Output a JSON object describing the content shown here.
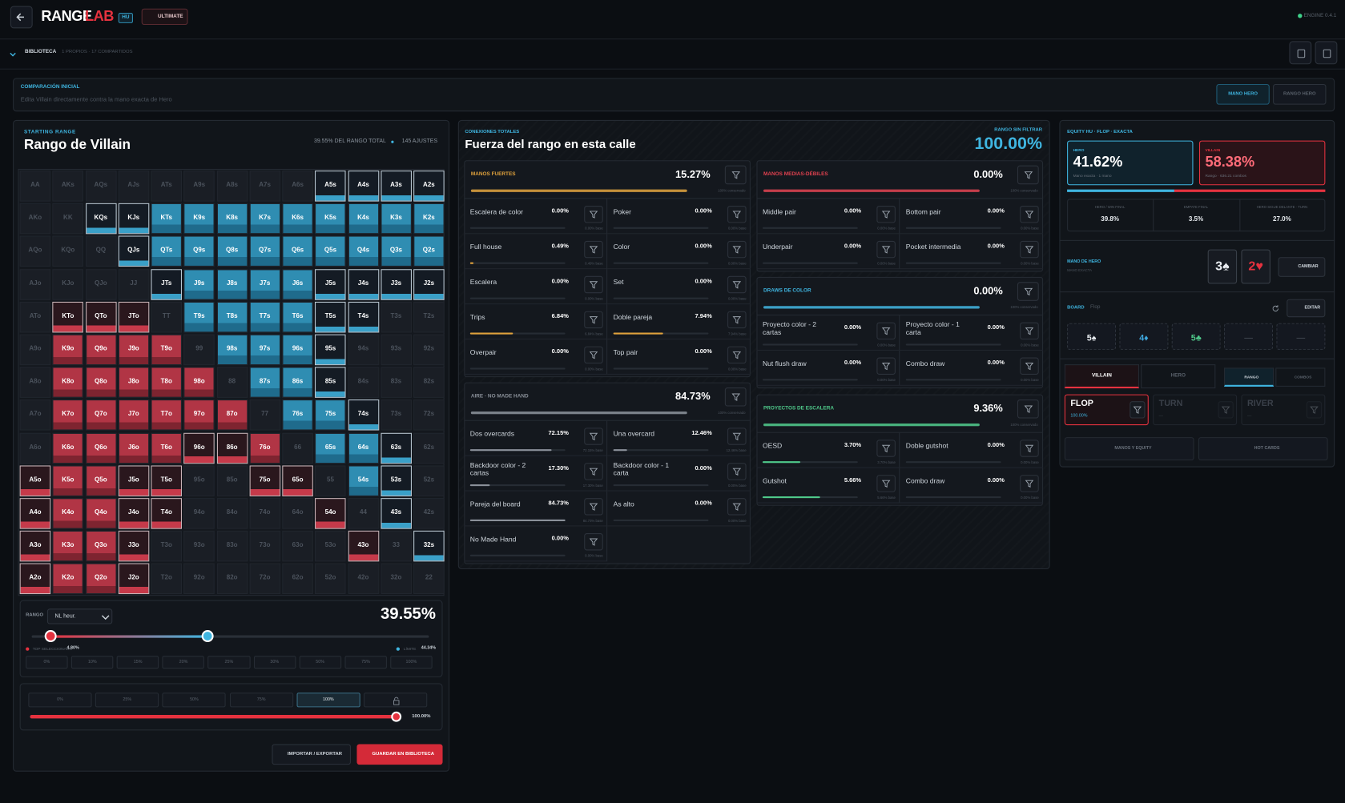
{
  "header": {
    "logo_a": "RANGE",
    "logo_b": "LAB",
    "badge": "HU",
    "plan": "ULTIMATE",
    "engine": "ENGINE 0.4.1"
  },
  "library": {
    "title": "BIBLIOTECA",
    "meta": "1 PROPIOS · 17 COMPARTIDOS"
  },
  "comparison": {
    "label": "COMPARACIÓN INICIAL",
    "text": "Edita Villain directamente contra la mano exacta de Hero",
    "tabs": [
      "MANO HERO",
      "RANGO HERO"
    ]
  },
  "villain": {
    "kicker": "STARTING RANGE",
    "title": "Rango de Villain",
    "total": "39.55% DEL RANGO TOTAL",
    "adjust": "145 AJUSTES",
    "palette": {
      "none": "#1a1e25",
      "hero": "#2f8db2",
      "hero_part": "#141b24",
      "villain": "#b13545",
      "villain_part": "#2a171d"
    },
    "matrix": [
      [
        "AA",
        "AKs",
        "AQs",
        "AJs",
        "ATs",
        "A9s",
        "A8s",
        "A7s",
        "A6s",
        "A5s",
        "A4s",
        "A3s",
        "A2s"
      ],
      [
        "AKo",
        "KK",
        "KQs",
        "KJs",
        "KTs",
        "K9s",
        "K8s",
        "K7s",
        "K6s",
        "K5s",
        "K4s",
        "K3s",
        "K2s"
      ],
      [
        "AQo",
        "KQo",
        "QQ",
        "QJs",
        "QTs",
        "Q9s",
        "Q8s",
        "Q7s",
        "Q6s",
        "Q5s",
        "Q4s",
        "Q3s",
        "Q2s"
      ],
      [
        "AJo",
        "KJo",
        "QJo",
        "JJ",
        "JTs",
        "J9s",
        "J8s",
        "J7s",
        "J6s",
        "J5s",
        "J4s",
        "J3s",
        "J2s"
      ],
      [
        "ATo",
        "KTo",
        "QTo",
        "JTo",
        "TT",
        "T9s",
        "T8s",
        "T7s",
        "T6s",
        "T5s",
        "T4s",
        "T3s",
        "T2s"
      ],
      [
        "A9o",
        "K9o",
        "Q9o",
        "J9o",
        "T9o",
        "99",
        "98s",
        "97s",
        "96s",
        "95s",
        "94s",
        "93s",
        "92s"
      ],
      [
        "A8o",
        "K8o",
        "Q8o",
        "J8o",
        "T8o",
        "98o",
        "88",
        "87s",
        "86s",
        "85s",
        "84s",
        "83s",
        "82s"
      ],
      [
        "A7o",
        "K7o",
        "Q7o",
        "J7o",
        "T7o",
        "97o",
        "87o",
        "77",
        "76s",
        "75s",
        "74s",
        "73s",
        "72s"
      ],
      [
        "A6o",
        "K6o",
        "Q6o",
        "J6o",
        "T6o",
        "96o",
        "86o",
        "76o",
        "66",
        "65s",
        "64s",
        "63s",
        "62s"
      ],
      [
        "A5o",
        "K5o",
        "Q5o",
        "J5o",
        "T5o",
        "95o",
        "85o",
        "75o",
        "65o",
        "55",
        "54s",
        "53s",
        "52s"
      ],
      [
        "A4o",
        "K4o",
        "Q4o",
        "J4o",
        "T4o",
        "94o",
        "84o",
        "74o",
        "64o",
        "54o",
        "44",
        "43s",
        "42s"
      ],
      [
        "A3o",
        "K3o",
        "Q3o",
        "J3o",
        "T3o",
        "93o",
        "83o",
        "73o",
        "63o",
        "53o",
        "43o",
        "33",
        "32s"
      ],
      [
        "A2o",
        "K2o",
        "Q2o",
        "J2o",
        "T2o",
        "92o",
        "82o",
        "72o",
        "62o",
        "52o",
        "42o",
        "32o",
        "22"
      ]
    ],
    "states": [
      [
        "none",
        "none",
        "none",
        "none",
        "none",
        "none",
        "none",
        "none",
        "none",
        "hero_part",
        "hero_part",
        "hero_part",
        "hero_part"
      ],
      [
        "none",
        "none",
        "hero_part",
        "hero_part",
        "hero",
        "hero",
        "hero",
        "hero",
        "hero",
        "hero",
        "hero",
        "hero",
        "hero"
      ],
      [
        "none",
        "none",
        "none",
        "hero_part",
        "hero",
        "hero",
        "hero",
        "hero",
        "hero",
        "hero",
        "hero",
        "hero",
        "hero"
      ],
      [
        "none",
        "none",
        "none",
        "none",
        "hero_part",
        "hero",
        "hero",
        "hero",
        "hero",
        "hero_part",
        "hero_part",
        "hero_part",
        "hero_part"
      ],
      [
        "none",
        "villain_part",
        "villain_part",
        "villain_part",
        "none",
        "hero",
        "hero",
        "hero",
        "hero",
        "hero_part",
        "hero_part",
        "none",
        "none"
      ],
      [
        "none",
        "villain",
        "villain",
        "villain",
        "villain",
        "none",
        "hero",
        "hero",
        "hero",
        "hero_part",
        "none",
        "none",
        "none"
      ],
      [
        "none",
        "villain",
        "villain",
        "villain",
        "villain",
        "villain",
        "none",
        "hero",
        "hero",
        "hero_part",
        "none",
        "none",
        "none"
      ],
      [
        "none",
        "villain",
        "villain",
        "villain",
        "villain",
        "villain",
        "villain",
        "none",
        "hero",
        "hero",
        "hero_part",
        "none",
        "none"
      ],
      [
        "none",
        "villain",
        "villain",
        "villain",
        "villain",
        "villain_part",
        "villain_part",
        "villain",
        "none",
        "hero",
        "hero",
        "hero_part",
        "none"
      ],
      [
        "villain_part",
        "villain",
        "villain",
        "villain_part",
        "villain_part",
        "none",
        "none",
        "villain_part",
        "villain_part",
        "none",
        "hero",
        "hero_part",
        "none"
      ],
      [
        "villain_part",
        "villain",
        "villain",
        "villain_part",
        "villain_part",
        "none",
        "none",
        "none",
        "none",
        "villain_part",
        "none",
        "hero_part",
        "none"
      ],
      [
        "villain_part",
        "villain",
        "villain",
        "villain_part",
        "none",
        "none",
        "none",
        "none",
        "none",
        "none",
        "villain_part",
        "none",
        "hero_part"
      ],
      [
        "villain_part",
        "villain",
        "villain",
        "villain_part",
        "none",
        "none",
        "none",
        "none",
        "none",
        "none",
        "none",
        "none",
        "none"
      ]
    ],
    "range": {
      "label": "RANGO",
      "preset": "NL heur.",
      "value": "39.55%",
      "top_label": "TOP SELECCIONADO",
      "top": {
        "value": 4.8,
        "label": "4.80%"
      },
      "limit_label": "LÍMITE",
      "limit": {
        "value": 44.34,
        "label": "44.34%"
      },
      "presets": [
        "0%",
        "10%",
        "15%",
        "20%",
        "25%",
        "30%",
        "50%",
        "75%",
        "100%"
      ]
    },
    "weight": {
      "presets": [
        "0%",
        "25%",
        "50%",
        "75%",
        "100%"
      ],
      "active": 4,
      "value": {
        "value": 100,
        "label": "100.00%"
      }
    },
    "actions": [
      "IMPORTAR / EXPORTAR",
      "GUARDAR EN BIBLIOTECA"
    ]
  },
  "strength": {
    "kicker": "CONEXIONES TOTALES",
    "title": "Fuerza del rango en esta calle",
    "unfiltered_label": "RANGO SIN FILTRAR",
    "unfiltered": "100.00%",
    "sections": [
      {
        "name": "MANOS FUERTES",
        "color": "#e0a23c",
        "value": 15.27,
        "label": "15.27%",
        "kept": {
          "value": 100,
          "label": "100% conservado"
        },
        "items": [
          {
            "name": "Escalera de color",
            "value": 0,
            "label": "0.00%",
            "base": "0.00% base"
          },
          {
            "name": "Poker",
            "value": 0,
            "label": "0.00%",
            "base": "0.00% base"
          },
          {
            "name": "Full house",
            "value": 0.49,
            "label": "0.49%",
            "base": "0.49% base"
          },
          {
            "name": "Color",
            "value": 0,
            "label": "0.00%",
            "base": "0.00% base"
          },
          {
            "name": "Escalera",
            "value": 0,
            "label": "0.00%",
            "base": "0.00% base"
          },
          {
            "name": "Set",
            "value": 0,
            "label": "0.00%",
            "base": "0.00% base"
          },
          {
            "name": "Trips",
            "value": 6.84,
            "label": "6.84%",
            "base": "6.84% base"
          },
          {
            "name": "Doble pareja",
            "value": 7.94,
            "label": "7.94%",
            "base": "7.94% base"
          },
          {
            "name": "Overpair",
            "value": 0,
            "label": "0.00%",
            "base": "0.00% base"
          },
          {
            "name": "Top pair",
            "value": 0,
            "label": "0.00%",
            "base": "0.00% base"
          }
        ]
      },
      {
        "name": "AIRE · NO MADE HAND",
        "color": "#8a9099",
        "value": 84.73,
        "label": "84.73%",
        "kept": {
          "value": 100,
          "label": "100% conservado"
        },
        "items": [
          {
            "name": "Dos overcards",
            "value": 72.15,
            "label": "72.15%",
            "base": "72.15% base"
          },
          {
            "name": "Una overcard",
            "value": 12.46,
            "label": "12.46%",
            "base": "12.46% base"
          },
          {
            "name": "Backdoor color - 2 cartas",
            "value": 17.3,
            "label": "17.30%",
            "base": "17.30% base"
          },
          {
            "name": "Backdoor color - 1 carta",
            "value": 0,
            "label": "0.00%",
            "base": "0.00% base"
          },
          {
            "name": "Pareja del board",
            "value": 84.73,
            "label": "84.73%",
            "base": "84.73% base"
          },
          {
            "name": "As alto",
            "value": 0,
            "label": "0.00%",
            "base": "0.00% base"
          },
          {
            "name": "No Made Hand",
            "value": 0,
            "label": "0.00%",
            "base": "0.00% base"
          }
        ]
      },
      {
        "name": "MANOS MEDIAS-DÉBILES",
        "color": "#e0414f",
        "value": 0,
        "label": "0.00%",
        "kept": {
          "value": 100,
          "label": "100% conservado"
        },
        "items": [
          {
            "name": "Middle pair",
            "value": 0,
            "label": "0.00%",
            "base": "0.00% base"
          },
          {
            "name": "Bottom pair",
            "value": 0,
            "label": "0.00%",
            "base": "0.00% base"
          },
          {
            "name": "Underpair",
            "value": 0,
            "label": "0.00%",
            "base": "0.00% base"
          },
          {
            "name": "Pocket intermedia",
            "value": 0,
            "label": "0.00%",
            "base": "0.00% base"
          }
        ]
      },
      {
        "name": "DRAWS DE COLOR",
        "color": "#3fb5e0",
        "value": 0,
        "label": "0.00%",
        "kept": {
          "value": 100,
          "label": "100% conservado"
        },
        "items": [
          {
            "name": "Proyecto color - 2 cartas",
            "value": 0,
            "label": "0.00%",
            "base": "0.00% base"
          },
          {
            "name": "Proyecto color - 1 carta",
            "value": 0,
            "label": "0.00%",
            "base": "0.00% base"
          },
          {
            "name": "Nut flush draw",
            "value": 0,
            "label": "0.00%",
            "base": "0.00% base"
          },
          {
            "name": "Combo draw",
            "value": 0,
            "label": "0.00%",
            "base": "0.00% base"
          }
        ]
      },
      {
        "name": "PROYECTOS DE ESCALERA",
        "color": "#4fc98a",
        "value": 9.36,
        "label": "9.36%",
        "kept": {
          "value": 100,
          "label": "100% conservado"
        },
        "items": [
          {
            "name": "OESD",
            "value": 3.7,
            "label": "3.70%",
            "base": "3.70% base"
          },
          {
            "name": "Doble gutshot",
            "value": 0,
            "label": "0.00%",
            "base": "0.00% base"
          },
          {
            "name": "Gutshot",
            "value": 5.66,
            "label": "5.66%",
            "base": "5.66% base"
          },
          {
            "name": "Combo draw",
            "value": 0,
            "label": "0.00%",
            "base": "0.00% base"
          }
        ]
      }
    ]
  },
  "equity": {
    "kicker": "EQUITY HU · FLOP · EXACTA",
    "hero": {
      "name": "HERO",
      "value": 41.62,
      "label": "41.62%",
      "sub": "Mano exacta · 1 mano"
    },
    "villain": {
      "name": "VILLAIN",
      "value": 58.38,
      "label": "58.38%",
      "sub": "Rango · 636.21 combos"
    },
    "stats": [
      {
        "label": "HERO / WIN FINAL",
        "value": "39.8%"
      },
      {
        "label": "EMPATE FINAL",
        "value": "3.5%"
      },
      {
        "label": "HERO SIGUE DELANTE · TURN",
        "value": "27.0%"
      }
    ],
    "hand_label": "MANO DE HERO",
    "hand_sub": "MANO EXACTA",
    "cards": [
      {
        "text": "3♠",
        "color": "#e8ecf0"
      },
      {
        "text": "2♥",
        "color": "#e5323f"
      }
    ],
    "change": "CAMBIAR",
    "board_label": "BOARD",
    "board_street": "Flop",
    "edit": "EDITAR",
    "board": [
      {
        "text": "5♠",
        "color": "#e8ecf0"
      },
      {
        "text": "4♦",
        "color": "#3fa9e0"
      },
      {
        "text": "5♣",
        "color": "#4fc98a"
      },
      {
        "text": "—",
        "color": "#3a4049"
      },
      {
        "text": "—",
        "color": "#3a4049"
      }
    ],
    "tabs": [
      "VILLAIN",
      "HERO"
    ],
    "modes": [
      "RANGO",
      "COMBOS"
    ],
    "streets": [
      {
        "name": "FLOP",
        "sub": "100.00%"
      },
      {
        "name": "TURN",
        "sub": "—"
      },
      {
        "name": "RIVER",
        "sub": "—"
      }
    ],
    "bottom": [
      "MANOS Y EQUITY",
      "HOT CARDS"
    ]
  }
}
